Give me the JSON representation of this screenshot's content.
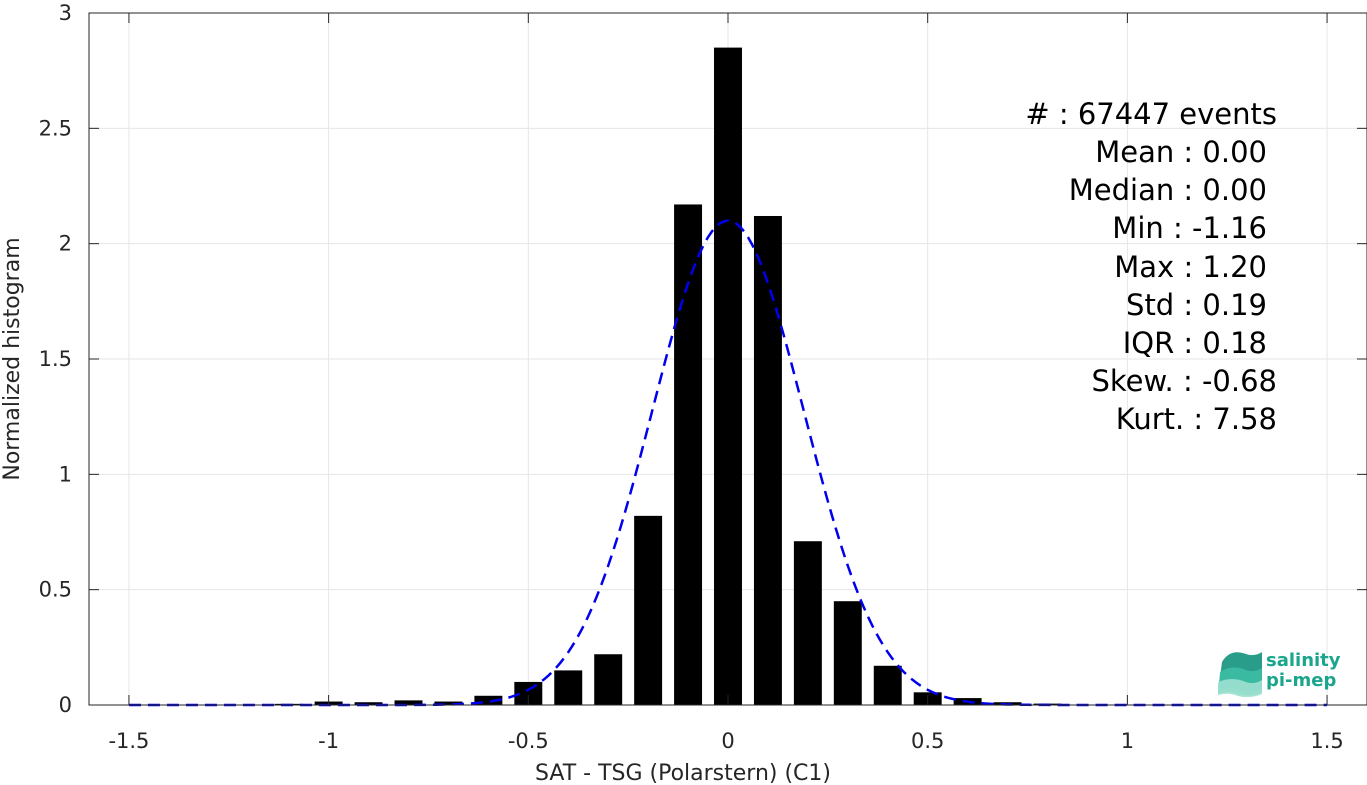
{
  "chart_data": {
    "type": "bar",
    "xlabel": "SAT - TSG (Polarstern) (C1)",
    "ylabel": "Normalized histogram",
    "xlim": [
      -1.6,
      1.6
    ],
    "ylim": [
      0,
      3
    ],
    "x_ticks": [
      -1.5,
      -1,
      -0.5,
      0,
      0.5,
      1,
      1.5
    ],
    "x_tick_labels": [
      "-1.5",
      "-1",
      "-0.5",
      "0",
      "0.5",
      "1",
      "1.5"
    ],
    "y_ticks": [
      0,
      0.5,
      1,
      1.5,
      2,
      2.5,
      3
    ],
    "y_tick_labels": [
      "0",
      "0.5",
      "1",
      "1.5",
      "2",
      "2.5",
      "3"
    ],
    "grid": true,
    "bar_width": 0.07,
    "bars": [
      {
        "x": -1.1,
        "y": 0.005
      },
      {
        "x": -1.0,
        "y": 0.015
      },
      {
        "x": -0.9,
        "y": 0.012
      },
      {
        "x": -0.8,
        "y": 0.02
      },
      {
        "x": -0.7,
        "y": 0.015
      },
      {
        "x": -0.6,
        "y": 0.04
      },
      {
        "x": -0.5,
        "y": 0.1
      },
      {
        "x": -0.4,
        "y": 0.15
      },
      {
        "x": -0.3,
        "y": 0.22
      },
      {
        "x": -0.2,
        "y": 0.82
      },
      {
        "x": -0.1,
        "y": 2.17
      },
      {
        "x": 0.0,
        "y": 2.85
      },
      {
        "x": 0.1,
        "y": 2.12
      },
      {
        "x": 0.2,
        "y": 0.71
      },
      {
        "x": 0.3,
        "y": 0.45
      },
      {
        "x": 0.4,
        "y": 0.17
      },
      {
        "x": 0.5,
        "y": 0.055
      },
      {
        "x": 0.6,
        "y": 0.03
      },
      {
        "x": 0.7,
        "y": 0.012
      },
      {
        "x": 0.8,
        "y": 0.006
      }
    ],
    "fit_curve": {
      "style": "dashed",
      "color": "#0000ee",
      "mean": 0.0,
      "std": 0.19,
      "x_range": [
        -1.5,
        1.5
      ]
    },
    "bar_color": "#000000"
  },
  "stats": [
    "#  : 67447 events",
    "Mean : 0.00",
    "Median : 0.00",
    "Min : -1.16",
    "Max : 1.20",
    "Std : 0.19",
    "IQR : 0.18",
    "Skew. : -0.68",
    "Kurt. : 7.58"
  ],
  "logo": {
    "line1": "salinity",
    "line2": "pi-mep",
    "color": "#1aa58c"
  }
}
